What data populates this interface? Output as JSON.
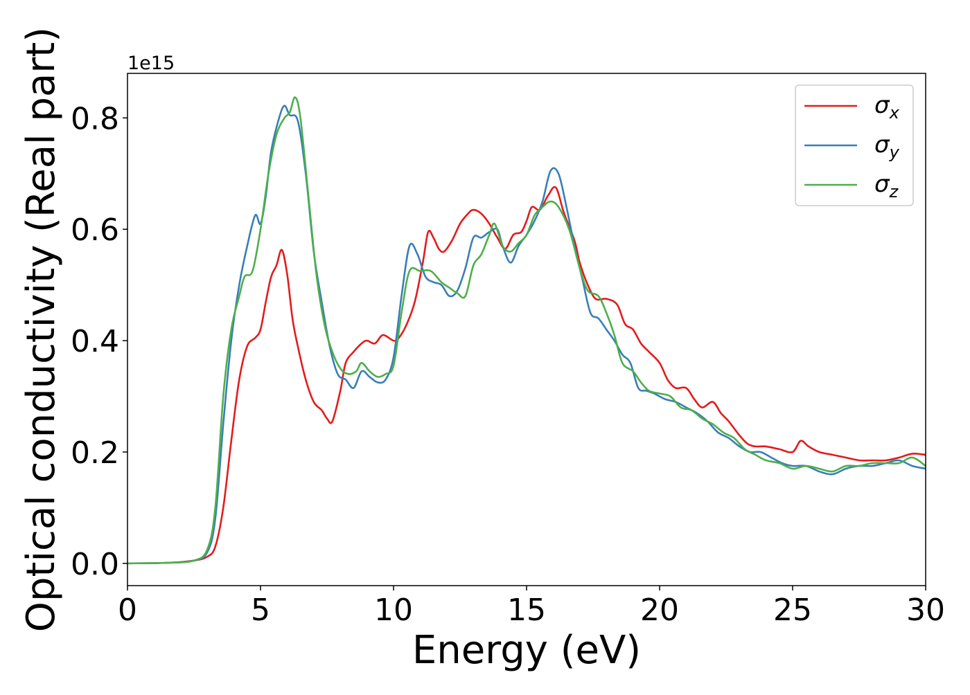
{
  "chart_data": {
    "type": "line",
    "xlabel": "Energy (eV)",
    "ylabel": "Optical conductivity (Real part)",
    "y_offset_text": "1e15",
    "xlim": [
      0,
      30
    ],
    "ylim": [
      -0.04,
      0.88
    ],
    "x_ticks": [
      0,
      5,
      10,
      15,
      20,
      25,
      30
    ],
    "x_tick_labels": [
      "0",
      "5",
      "10",
      "15",
      "20",
      "25",
      "30"
    ],
    "y_ticks": [
      0.0,
      0.2,
      0.4,
      0.6,
      0.8
    ],
    "y_tick_labels": [
      "0.0",
      "0.2",
      "0.4",
      "0.6",
      "0.8"
    ],
    "grid": false,
    "legend_position": "top-right",
    "series": [
      {
        "name": "σx",
        "symbol": "σ",
        "subscript": "x",
        "color": "#e41a1c",
        "points": [
          [
            0,
            0.0
          ],
          [
            1.5,
            0.001
          ],
          [
            2.5,
            0.005
          ],
          [
            3.0,
            0.012
          ],
          [
            3.3,
            0.03
          ],
          [
            3.6,
            0.1
          ],
          [
            3.9,
            0.22
          ],
          [
            4.2,
            0.33
          ],
          [
            4.5,
            0.39
          ],
          [
            4.8,
            0.405
          ],
          [
            5.0,
            0.42
          ],
          [
            5.2,
            0.47
          ],
          [
            5.4,
            0.515
          ],
          [
            5.6,
            0.535
          ],
          [
            5.8,
            0.563
          ],
          [
            6.0,
            0.52
          ],
          [
            6.2,
            0.44
          ],
          [
            6.4,
            0.39
          ],
          [
            6.7,
            0.33
          ],
          [
            7.0,
            0.29
          ],
          [
            7.3,
            0.275
          ],
          [
            7.5,
            0.26
          ],
          [
            7.7,
            0.255
          ],
          [
            8.0,
            0.31
          ],
          [
            8.2,
            0.36
          ],
          [
            8.5,
            0.38
          ],
          [
            8.8,
            0.395
          ],
          [
            9.0,
            0.4
          ],
          [
            9.3,
            0.395
          ],
          [
            9.6,
            0.41
          ],
          [
            10.0,
            0.4
          ],
          [
            10.2,
            0.405
          ],
          [
            10.5,
            0.43
          ],
          [
            10.8,
            0.47
          ],
          [
            11.1,
            0.54
          ],
          [
            11.3,
            0.595
          ],
          [
            11.5,
            0.585
          ],
          [
            11.7,
            0.565
          ],
          [
            11.9,
            0.56
          ],
          [
            12.2,
            0.58
          ],
          [
            12.5,
            0.61
          ],
          [
            12.8,
            0.628
          ],
          [
            13.0,
            0.635
          ],
          [
            13.3,
            0.628
          ],
          [
            13.6,
            0.61
          ],
          [
            13.9,
            0.585
          ],
          [
            14.2,
            0.565
          ],
          [
            14.5,
            0.59
          ],
          [
            14.8,
            0.595
          ],
          [
            15.0,
            0.615
          ],
          [
            15.2,
            0.64
          ],
          [
            15.5,
            0.635
          ],
          [
            15.8,
            0.66
          ],
          [
            16.1,
            0.675
          ],
          [
            16.4,
            0.63
          ],
          [
            16.8,
            0.58
          ],
          [
            17.0,
            0.54
          ],
          [
            17.3,
            0.5
          ],
          [
            17.6,
            0.475
          ],
          [
            18.0,
            0.475
          ],
          [
            18.4,
            0.465
          ],
          [
            18.7,
            0.43
          ],
          [
            19.0,
            0.42
          ],
          [
            19.3,
            0.395
          ],
          [
            19.6,
            0.38
          ],
          [
            20.0,
            0.36
          ],
          [
            20.3,
            0.33
          ],
          [
            20.6,
            0.315
          ],
          [
            21.0,
            0.315
          ],
          [
            21.3,
            0.295
          ],
          [
            21.6,
            0.28
          ],
          [
            22.0,
            0.29
          ],
          [
            22.3,
            0.27
          ],
          [
            22.6,
            0.255
          ],
          [
            23.0,
            0.23
          ],
          [
            23.3,
            0.215
          ],
          [
            23.6,
            0.21
          ],
          [
            24.0,
            0.21
          ],
          [
            24.5,
            0.205
          ],
          [
            25.0,
            0.2
          ],
          [
            25.3,
            0.22
          ],
          [
            25.6,
            0.21
          ],
          [
            26.0,
            0.2
          ],
          [
            26.5,
            0.195
          ],
          [
            27.0,
            0.19
          ],
          [
            27.5,
            0.185
          ],
          [
            28.0,
            0.185
          ],
          [
            28.5,
            0.185
          ],
          [
            29.0,
            0.19
          ],
          [
            29.5,
            0.197
          ],
          [
            30.0,
            0.195
          ]
        ]
      },
      {
        "name": "σy",
        "symbol": "σ",
        "subscript": "y",
        "color": "#377eb8",
        "points": [
          [
            0,
            0.0
          ],
          [
            1.5,
            0.001
          ],
          [
            2.5,
            0.005
          ],
          [
            3.0,
            0.02
          ],
          [
            3.3,
            0.08
          ],
          [
            3.6,
            0.25
          ],
          [
            3.9,
            0.4
          ],
          [
            4.2,
            0.5
          ],
          [
            4.5,
            0.57
          ],
          [
            4.8,
            0.625
          ],
          [
            5.0,
            0.61
          ],
          [
            5.2,
            0.66
          ],
          [
            5.4,
            0.74
          ],
          [
            5.7,
            0.8
          ],
          [
            5.9,
            0.822
          ],
          [
            6.1,
            0.805
          ],
          [
            6.4,
            0.795
          ],
          [
            6.7,
            0.7
          ],
          [
            7.0,
            0.56
          ],
          [
            7.3,
            0.47
          ],
          [
            7.6,
            0.39
          ],
          [
            7.9,
            0.34
          ],
          [
            8.2,
            0.33
          ],
          [
            8.5,
            0.315
          ],
          [
            8.8,
            0.345
          ],
          [
            9.1,
            0.335
          ],
          [
            9.4,
            0.325
          ],
          [
            9.7,
            0.33
          ],
          [
            10.0,
            0.37
          ],
          [
            10.3,
            0.48
          ],
          [
            10.6,
            0.57
          ],
          [
            10.9,
            0.555
          ],
          [
            11.2,
            0.515
          ],
          [
            11.5,
            0.505
          ],
          [
            11.8,
            0.5
          ],
          [
            12.1,
            0.48
          ],
          [
            12.4,
            0.49
          ],
          [
            12.7,
            0.53
          ],
          [
            13.0,
            0.585
          ],
          [
            13.3,
            0.585
          ],
          [
            13.6,
            0.595
          ],
          [
            13.9,
            0.6
          ],
          [
            14.1,
            0.57
          ],
          [
            14.4,
            0.54
          ],
          [
            14.7,
            0.57
          ],
          [
            15.0,
            0.59
          ],
          [
            15.3,
            0.615
          ],
          [
            15.6,
            0.65
          ],
          [
            15.9,
            0.705
          ],
          [
            16.2,
            0.7
          ],
          [
            16.5,
            0.64
          ],
          [
            16.8,
            0.57
          ],
          [
            17.1,
            0.51
          ],
          [
            17.4,
            0.45
          ],
          [
            17.7,
            0.44
          ],
          [
            18.0,
            0.42
          ],
          [
            18.3,
            0.4
          ],
          [
            18.6,
            0.375
          ],
          [
            18.9,
            0.36
          ],
          [
            19.2,
            0.315
          ],
          [
            19.5,
            0.31
          ],
          [
            19.8,
            0.305
          ],
          [
            20.2,
            0.295
          ],
          [
            20.6,
            0.29
          ],
          [
            21.0,
            0.28
          ],
          [
            21.4,
            0.27
          ],
          [
            21.8,
            0.255
          ],
          [
            22.2,
            0.235
          ],
          [
            22.6,
            0.225
          ],
          [
            23.0,
            0.21
          ],
          [
            23.4,
            0.2
          ],
          [
            23.8,
            0.2
          ],
          [
            24.2,
            0.19
          ],
          [
            24.6,
            0.18
          ],
          [
            25.0,
            0.175
          ],
          [
            25.5,
            0.175
          ],
          [
            26.0,
            0.165
          ],
          [
            26.5,
            0.16
          ],
          [
            27.0,
            0.17
          ],
          [
            27.5,
            0.175
          ],
          [
            28.0,
            0.175
          ],
          [
            28.5,
            0.18
          ],
          [
            29.0,
            0.185
          ],
          [
            29.5,
            0.175
          ],
          [
            30.0,
            0.17
          ]
        ]
      },
      {
        "name": "σz",
        "symbol": "σ",
        "subscript": "z",
        "color": "#4daf4a",
        "points": [
          [
            0,
            0.0
          ],
          [
            1.5,
            0.001
          ],
          [
            2.5,
            0.005
          ],
          [
            3.0,
            0.025
          ],
          [
            3.3,
            0.1
          ],
          [
            3.6,
            0.3
          ],
          [
            3.9,
            0.42
          ],
          [
            4.2,
            0.48
          ],
          [
            4.4,
            0.515
          ],
          [
            4.7,
            0.525
          ],
          [
            5.0,
            0.6
          ],
          [
            5.3,
            0.7
          ],
          [
            5.6,
            0.77
          ],
          [
            5.9,
            0.8
          ],
          [
            6.1,
            0.81
          ],
          [
            6.3,
            0.837
          ],
          [
            6.5,
            0.8
          ],
          [
            6.8,
            0.66
          ],
          [
            7.1,
            0.52
          ],
          [
            7.4,
            0.43
          ],
          [
            7.7,
            0.38
          ],
          [
            8.0,
            0.35
          ],
          [
            8.3,
            0.34
          ],
          [
            8.6,
            0.345
          ],
          [
            8.8,
            0.36
          ],
          [
            9.1,
            0.345
          ],
          [
            9.4,
            0.335
          ],
          [
            9.7,
            0.34
          ],
          [
            10.0,
            0.355
          ],
          [
            10.3,
            0.45
          ],
          [
            10.6,
            0.525
          ],
          [
            11.0,
            0.525
          ],
          [
            11.4,
            0.525
          ],
          [
            11.8,
            0.505
          ],
          [
            12.1,
            0.495
          ],
          [
            12.4,
            0.485
          ],
          [
            12.7,
            0.48
          ],
          [
            13.0,
            0.535
          ],
          [
            13.3,
            0.555
          ],
          [
            13.6,
            0.59
          ],
          [
            13.8,
            0.61
          ],
          [
            14.1,
            0.57
          ],
          [
            14.4,
            0.56
          ],
          [
            14.7,
            0.575
          ],
          [
            15.0,
            0.59
          ],
          [
            15.3,
            0.625
          ],
          [
            15.6,
            0.64
          ],
          [
            15.9,
            0.65
          ],
          [
            16.2,
            0.64
          ],
          [
            16.6,
            0.6
          ],
          [
            17.0,
            0.53
          ],
          [
            17.3,
            0.49
          ],
          [
            17.7,
            0.48
          ],
          [
            18.0,
            0.45
          ],
          [
            18.3,
            0.41
          ],
          [
            18.6,
            0.36
          ],
          [
            19.0,
            0.345
          ],
          [
            19.3,
            0.325
          ],
          [
            19.6,
            0.31
          ],
          [
            20.0,
            0.305
          ],
          [
            20.4,
            0.3
          ],
          [
            20.8,
            0.28
          ],
          [
            21.2,
            0.275
          ],
          [
            21.6,
            0.26
          ],
          [
            22.0,
            0.25
          ],
          [
            22.4,
            0.235
          ],
          [
            22.8,
            0.225
          ],
          [
            23.2,
            0.205
          ],
          [
            23.6,
            0.195
          ],
          [
            24.0,
            0.185
          ],
          [
            24.5,
            0.18
          ],
          [
            25.0,
            0.17
          ],
          [
            25.5,
            0.175
          ],
          [
            26.0,
            0.17
          ],
          [
            26.5,
            0.165
          ],
          [
            27.0,
            0.175
          ],
          [
            27.5,
            0.175
          ],
          [
            28.0,
            0.18
          ],
          [
            28.5,
            0.18
          ],
          [
            29.0,
            0.18
          ],
          [
            29.5,
            0.19
          ],
          [
            30.0,
            0.175
          ]
        ]
      }
    ]
  }
}
